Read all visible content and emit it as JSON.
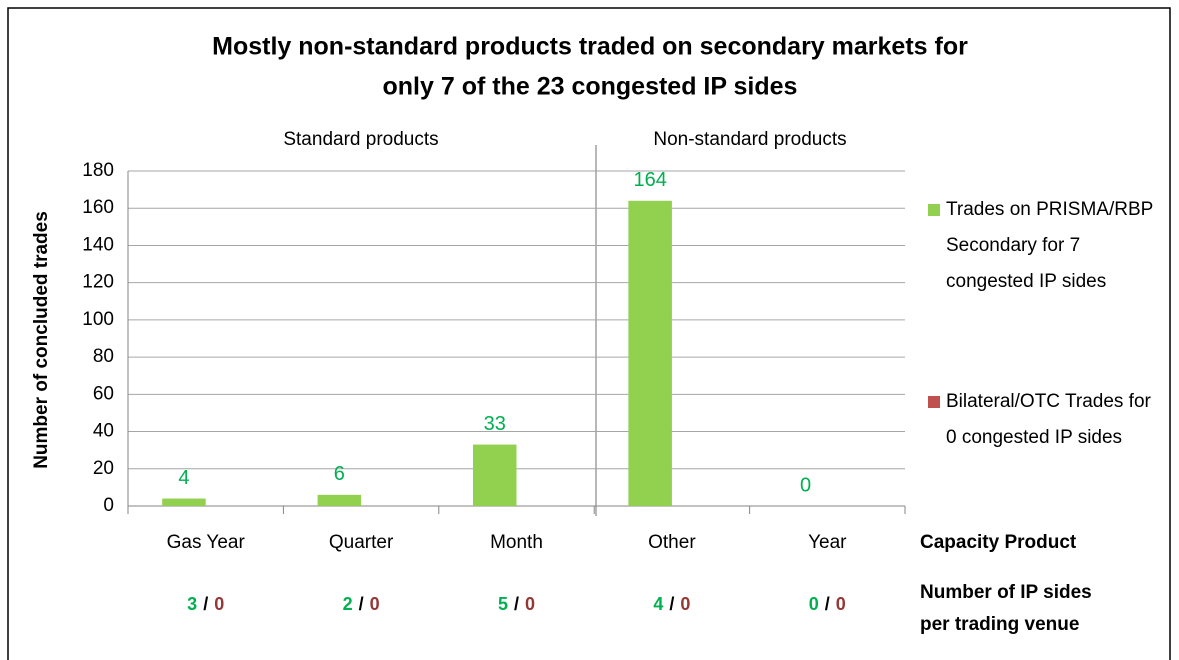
{
  "chart_data": {
    "type": "bar",
    "title": [
      "Mostly non-standard products traded on secondary markets for",
      "only 7 of the 23 congested IP sides"
    ],
    "groups": [
      "Standard products",
      "Non-standard products"
    ],
    "categories": [
      "Gas Year",
      "Quarter",
      "Month",
      "Other",
      "Year"
    ],
    "series": [
      {
        "name": "Trades on PRISMA/RBP Secondary for 7 congested IP sides",
        "color": "#92d050",
        "label_color": "#00b050",
        "values": [
          4,
          6,
          33,
          164,
          0
        ],
        "ip_sides": [
          3,
          2,
          5,
          4,
          0
        ]
      },
      {
        "name": "Bilateral/OTC Trades for 0 congested IP sides",
        "color": "#c0504d",
        "label_color": "#953735",
        "values": [
          0,
          0,
          0,
          0,
          0
        ],
        "ip_sides": [
          0,
          0,
          0,
          0,
          0
        ]
      }
    ],
    "ip_sides_separator": "/",
    "ylabel": "Number of concluded trades",
    "xlabel": "Capacity Product",
    "ip_sides_label": [
      "Number of IP sides",
      "per trading venue"
    ],
    "ylim": [
      0,
      180
    ],
    "yticks": [
      0,
      20,
      40,
      60,
      80,
      100,
      120,
      140,
      160,
      180
    ],
    "grid": true,
    "legend": "right"
  }
}
